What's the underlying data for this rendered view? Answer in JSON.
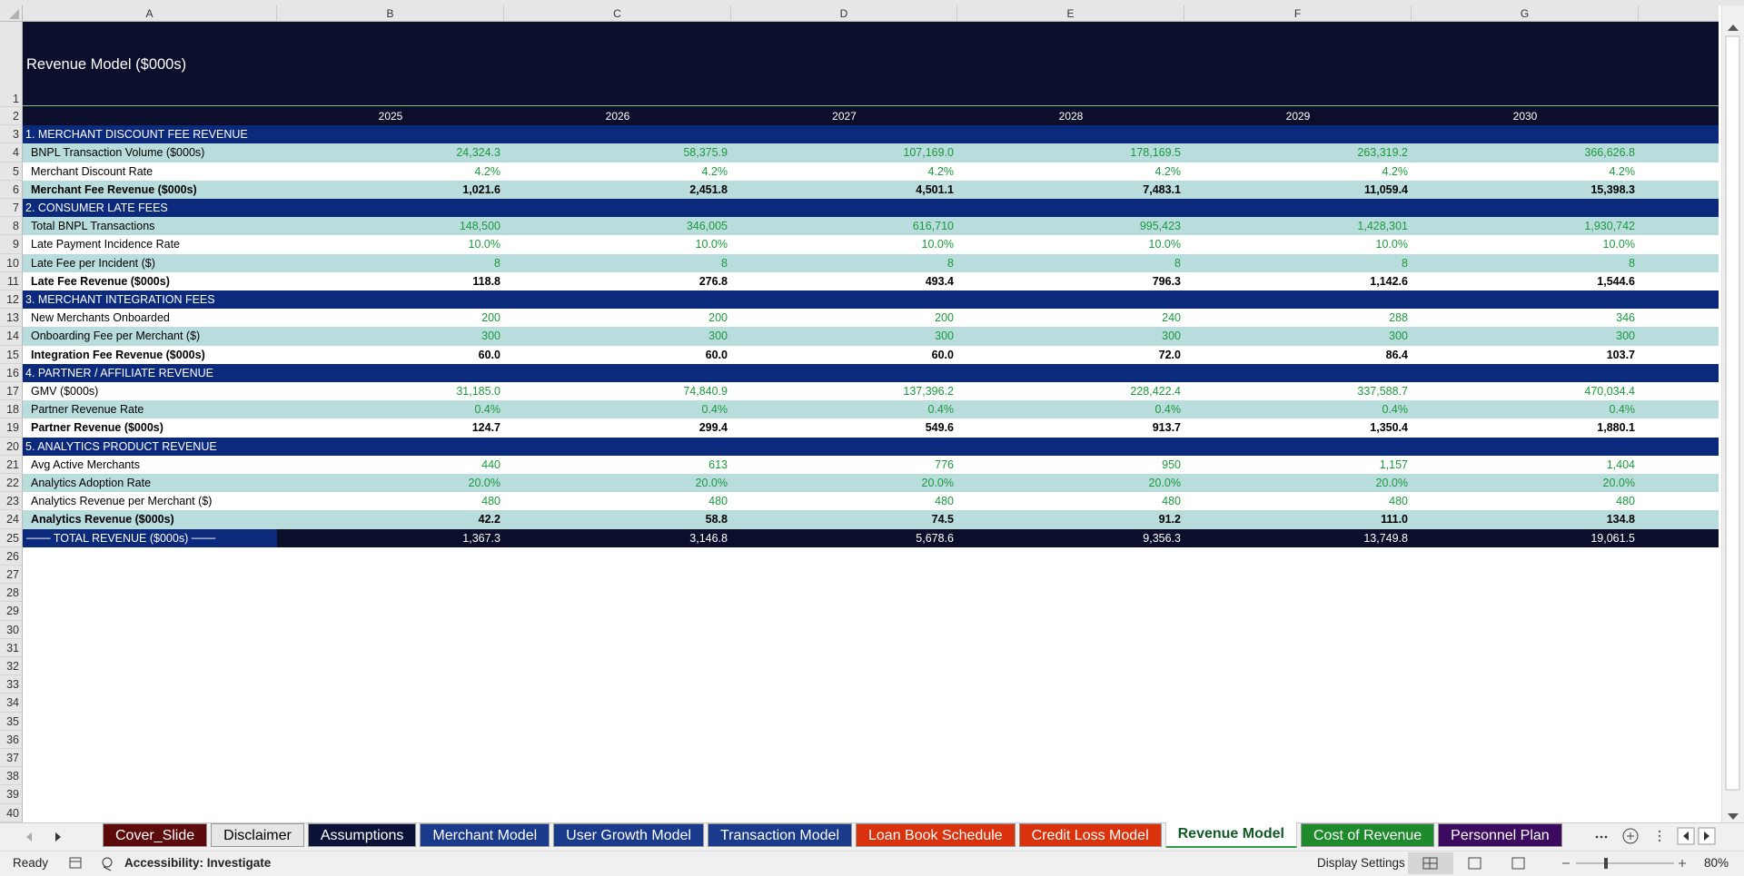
{
  "column_headers": [
    "A",
    "B",
    "C",
    "D",
    "E",
    "F",
    "G"
  ],
  "row_headers": [
    1,
    2,
    3,
    4,
    5,
    6,
    7,
    8,
    9,
    10,
    11,
    12,
    13,
    14,
    15,
    16,
    17,
    18,
    19,
    20,
    21,
    22,
    23,
    24,
    25,
    26,
    27,
    28,
    29,
    30,
    31,
    32,
    33,
    34,
    35,
    36,
    37,
    38,
    39,
    40
  ],
  "title": "Revenue Model  ($000s)",
  "years": [
    2025,
    2026,
    2027,
    2028,
    2029,
    2030
  ],
  "sections": [
    {
      "title": "1. MERCHANT DISCOUNT FEE REVENUE",
      "rows": [
        {
          "label": "BNPL Transaction Volume ($000s)",
          "values": [
            "24,324.3",
            "58,375.9",
            "107,169.0",
            "178,169.5",
            "263,319.2",
            "366,626.8"
          ]
        },
        {
          "label": "Merchant Discount Rate",
          "values": [
            "4.2%",
            "4.2%",
            "4.2%",
            "4.2%",
            "4.2%",
            "4.2%"
          ]
        }
      ],
      "total": {
        "label": "Merchant Fee Revenue ($000s)",
        "values": [
          "1,021.6",
          "2,451.8",
          "4,501.1",
          "7,483.1",
          "11,059.4",
          "15,398.3"
        ]
      }
    },
    {
      "title": "2. CONSUMER LATE FEES",
      "rows": [
        {
          "label": "Total BNPL Transactions",
          "values": [
            "148,500",
            "346,005",
            "616,710",
            "995,423",
            "1,428,301",
            "1,930,742"
          ]
        },
        {
          "label": "Late Payment Incidence Rate",
          "values": [
            "10.0%",
            "10.0%",
            "10.0%",
            "10.0%",
            "10.0%",
            "10.0%"
          ]
        },
        {
          "label": "Late Fee per Incident ($)",
          "values": [
            "8",
            "8",
            "8",
            "8",
            "8",
            "8"
          ]
        }
      ],
      "total": {
        "label": "Late Fee Revenue ($000s)",
        "values": [
          "118.8",
          "276.8",
          "493.4",
          "796.3",
          "1,142.6",
          "1,544.6"
        ]
      }
    },
    {
      "title": "3. MERCHANT INTEGRATION FEES",
      "rows": [
        {
          "label": "New Merchants Onboarded",
          "values": [
            "200",
            "200",
            "200",
            "240",
            "288",
            "346"
          ]
        },
        {
          "label": "Onboarding Fee per Merchant ($)",
          "values": [
            "300",
            "300",
            "300",
            "300",
            "300",
            "300"
          ]
        }
      ],
      "total": {
        "label": "Integration Fee Revenue ($000s)",
        "values": [
          "60.0",
          "60.0",
          "60.0",
          "72.0",
          "86.4",
          "103.7"
        ]
      }
    },
    {
      "title": "4. PARTNER / AFFILIATE REVENUE",
      "rows": [
        {
          "label": "GMV ($000s)",
          "values": [
            "31,185.0",
            "74,840.9",
            "137,396.2",
            "228,422.4",
            "337,588.7",
            "470,034.4"
          ]
        },
        {
          "label": "Partner Revenue Rate",
          "values": [
            "0.4%",
            "0.4%",
            "0.4%",
            "0.4%",
            "0.4%",
            "0.4%"
          ]
        }
      ],
      "total": {
        "label": "Partner Revenue ($000s)",
        "values": [
          "124.7",
          "299.4",
          "549.6",
          "913.7",
          "1,350.4",
          "1,880.1"
        ]
      }
    },
    {
      "title": "5. ANALYTICS PRODUCT REVENUE",
      "rows": [
        {
          "label": "Avg Active Merchants",
          "values": [
            "440",
            "613",
            "776",
            "950",
            "1,157",
            "1,404"
          ]
        },
        {
          "label": "Analytics Adoption Rate",
          "values": [
            "20.0%",
            "20.0%",
            "20.0%",
            "20.0%",
            "20.0%",
            "20.0%"
          ]
        },
        {
          "label": "Analytics Revenue per Merchant ($)",
          "values": [
            "480",
            "480",
            "480",
            "480",
            "480",
            "480"
          ]
        }
      ],
      "total": {
        "label": "Analytics Revenue ($000s)",
        "values": [
          "42.2",
          "58.8",
          "74.5",
          "91.2",
          "111.0",
          "134.8"
        ]
      }
    }
  ],
  "grand_total": {
    "label": "─── TOTAL REVENUE ($000s) ───",
    "values": [
      "1,367.3",
      "3,146.8",
      "5,678.6",
      "9,356.3",
      "13,749.8",
      "19,061.5"
    ]
  },
  "sheet_tabs": [
    {
      "label": "Cover_Slide",
      "color": "#5c0a0a"
    },
    {
      "label": "Disclaimer",
      "color": "#e6e6e6"
    },
    {
      "label": "Assumptions",
      "color": "#0b1238"
    },
    {
      "label": "Merchant Model",
      "color": "#1a3a8c"
    },
    {
      "label": "User Growth Model",
      "color": "#1a3a8c"
    },
    {
      "label": "Transaction Model",
      "color": "#1a3a8c"
    },
    {
      "label": "Loan Book Schedule",
      "color": "#d9320c"
    },
    {
      "label": "Credit Loss Model",
      "color": "#d9320c"
    },
    {
      "label": "Revenue Model",
      "color": "#2e9a4a",
      "active": true
    },
    {
      "label": "Cost of Revenue",
      "color": "#1f8a2c"
    },
    {
      "label": "Personnel Plan",
      "color": "#3c0a5e"
    }
  ],
  "status_bar": {
    "mode": "Ready",
    "accessibility": "Accessibility: Investigate",
    "display_settings": "Display Settings",
    "zoom": "80%"
  }
}
